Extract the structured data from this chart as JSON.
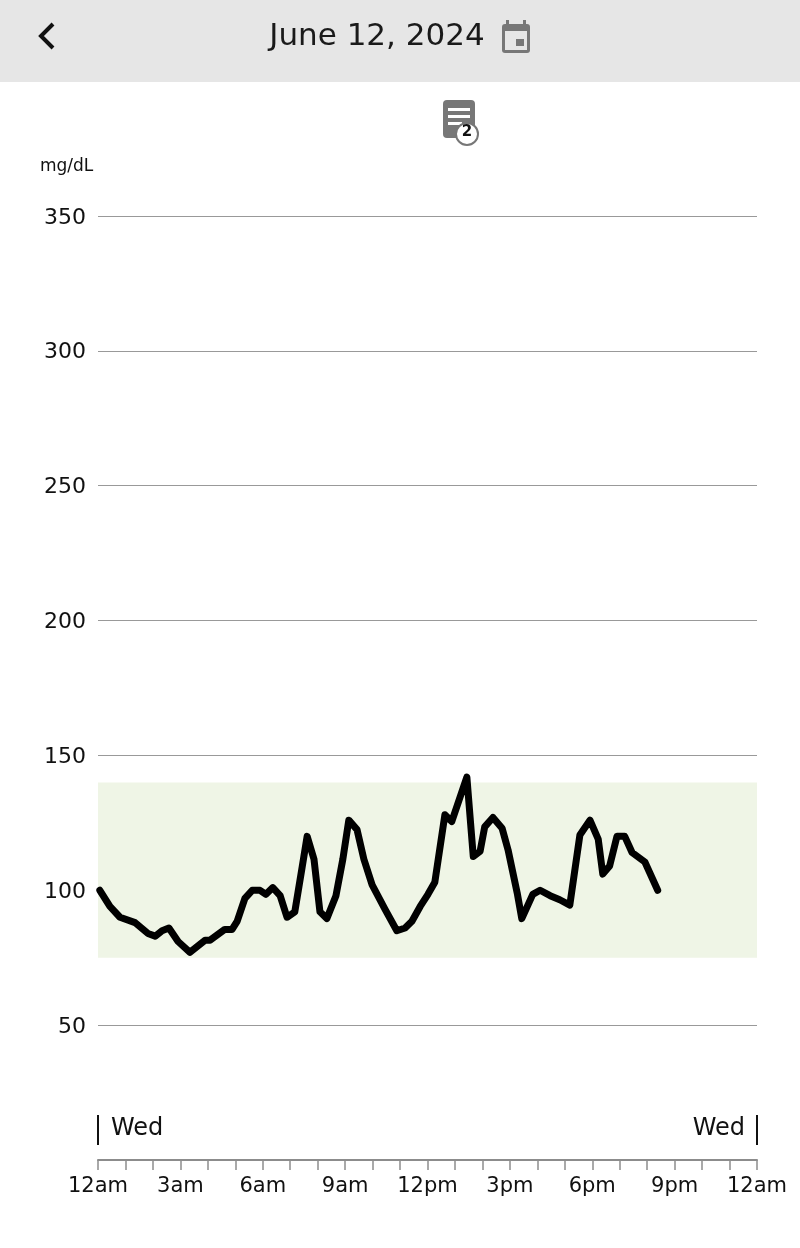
{
  "chart_data": {
    "type": "line",
    "title": "June 12, 2024",
    "ylabel": "mg/dL",
    "annotations": [
      "2",
      "Wed",
      "Wed"
    ],
    "series": [
      {
        "color": "#000000",
        "x": [
          "2024-06-12T00:04",
          "2024-06-12T00:26",
          "2024-06-12T00:48",
          "2024-06-12T01:21",
          "2024-06-12T01:49",
          "2024-06-12T02:05",
          "2024-06-12T02:20",
          "2024-06-12T02:35",
          "2024-06-12T02:55",
          "2024-06-12T03:21",
          "2024-06-12T03:43",
          "2024-06-12T03:54",
          "2024-06-12T04:05",
          "2024-06-12T04:37",
          "2024-06-12T04:53",
          "2024-06-12T05:04",
          "2024-06-12T05:21",
          "2024-06-12T05:37",
          "2024-06-12T05:54",
          "2024-06-12T06:07",
          "2024-06-12T06:22",
          "2024-06-12T06:38",
          "2024-06-12T06:53",
          "2024-06-12T07:10",
          "2024-06-12T07:26",
          "2024-06-12T07:37",
          "2024-06-12T07:52",
          "2024-06-12T08:05",
          "2024-06-12T08:20",
          "2024-06-12T08:40",
          "2024-06-12T08:55",
          "2024-06-12T09:08",
          "2024-06-12T09:26",
          "2024-06-12T09:41",
          "2024-06-12T09:59",
          "2024-06-12T10:27",
          "2024-06-12T10:53",
          "2024-06-12T11:11",
          "2024-06-12T11:26",
          "2024-06-12T11:44",
          "2024-06-12T12:01",
          "2024-06-12T12:16",
          "2024-06-12T12:38",
          "2024-06-12T12:53",
          "2024-06-12T13:26",
          "2024-06-12T13:40",
          "2024-06-12T13:55",
          "2024-06-12T14:05",
          "2024-06-12T14:23",
          "2024-06-12T14:43",
          "2024-06-12T14:56",
          "2024-06-12T15:16",
          "2024-06-12T15:26",
          "2024-06-12T15:50",
          "2024-06-12T16:06",
          "2024-06-12T16:28",
          "2024-06-12T16:49",
          "2024-06-12T17:11",
          "2024-06-12T17:33",
          "2024-06-12T17:55",
          "2024-06-12T18:13",
          "2024-06-12T18:23",
          "2024-06-12T18:38",
          "2024-06-12T18:54",
          "2024-06-12T19:11",
          "2024-06-12T19:27",
          "2024-06-12T19:55",
          "2024-06-12T20:23"
        ],
        "values": [
          100,
          94,
          90,
          88,
          84,
          83,
          85,
          86,
          81,
          77,
          80,
          81.5,
          81.5,
          85.5,
          85.5,
          88.5,
          97,
          100,
          100,
          98.5,
          101,
          98,
          90,
          92,
          108.5,
          120,
          111.5,
          92,
          89.5,
          98,
          111.5,
          126,
          122.5,
          111.5,
          102,
          93,
          85,
          86,
          88.5,
          94,
          98.5,
          103,
          128,
          125.5,
          142,
          112.5,
          114.5,
          123.5,
          127,
          123,
          115,
          99,
          89.5,
          98.5,
          100,
          98,
          96.5,
          94.5,
          120.5,
          126,
          119,
          106,
          109,
          120,
          120,
          114,
          110.5,
          100
        ]
      }
    ],
    "xlim": [
      "2024-06-12T00:00",
      "2024-06-13T00:00"
    ],
    "xticks": [
      {
        "value": "2024-06-12T00:00",
        "label": "12am"
      },
      {
        "value": "2024-06-12T01:00",
        "label": null
      },
      {
        "value": "2024-06-12T02:00",
        "label": null
      },
      {
        "value": "2024-06-12T03:00",
        "label": "3am"
      },
      {
        "value": "2024-06-12T04:00",
        "label": null
      },
      {
        "value": "2024-06-12T05:00",
        "label": null
      },
      {
        "value": "2024-06-12T06:00",
        "label": "6am"
      },
      {
        "value": "2024-06-12T07:00",
        "label": null
      },
      {
        "value": "2024-06-12T08:00",
        "label": null
      },
      {
        "value": "2024-06-12T09:00",
        "label": "9am"
      },
      {
        "value": "2024-06-12T10:00",
        "label": null
      },
      {
        "value": "2024-06-12T11:00",
        "label": null
      },
      {
        "value": "2024-06-12T12:00",
        "label": "12pm"
      },
      {
        "value": "2024-06-12T13:00",
        "label": null
      },
      {
        "value": "2024-06-12T14:00",
        "label": null
      },
      {
        "value": "2024-06-12T15:00",
        "label": "3pm"
      },
      {
        "value": "2024-06-12T16:00",
        "label": null
      },
      {
        "value": "2024-06-12T17:00",
        "label": null
      },
      {
        "value": "2024-06-12T18:00",
        "label": "6pm"
      },
      {
        "value": "2024-06-12T19:00",
        "label": null
      },
      {
        "value": "2024-06-12T20:00",
        "label": null
      },
      {
        "value": "2024-06-12T21:00",
        "label": "9pm"
      },
      {
        "value": "2024-06-12T22:00",
        "label": null
      },
      {
        "value": "2024-06-12T23:00",
        "label": null
      },
      {
        "value": "2024-06-13T00:00",
        "label": "12am"
      }
    ],
    "ylim": [
      0,
      350
    ],
    "yticks": [
      50,
      100,
      150,
      200,
      250,
      300,
      350
    ],
    "bands": [
      {
        "axis": "y",
        "from": 75,
        "to": 140,
        "label": null,
        "color": "#eff5e6"
      }
    ],
    "grid": "y",
    "marker": "none",
    "line_style": "solid"
  }
}
